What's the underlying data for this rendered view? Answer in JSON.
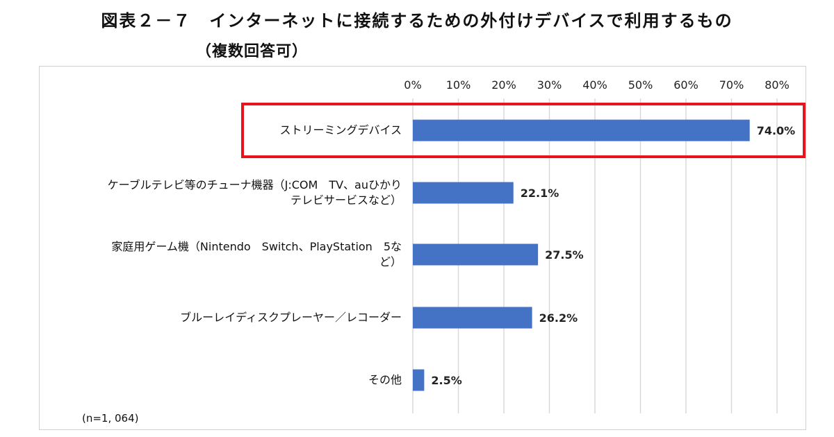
{
  "title": "図表２－７　インターネットに接続するための外付けデバイスで利用するもの",
  "subtitle": "（複数回答可）",
  "note": "(n=1, 064)",
  "chart_data": {
    "type": "bar",
    "orientation": "horizontal",
    "categories": [
      "ストリーミングデバイス",
      "ケーブルテレビ等のチューナ機器（J:COM　TV、auひかりテレビサービスなど）",
      "家庭用ゲーム機（Nintendo　Switch、PlayStation　5など）",
      "ブルーレイディスクプレーヤー／レコーダー",
      "その他"
    ],
    "category_lines": [
      [
        "ストリーミングデバイス"
      ],
      [
        "ケーブルテレビ等のチューナ機器（J:COM　TV、auひかり",
        "テレビサービスなど）"
      ],
      [
        "家庭用ゲーム機（Nintendo　Switch、PlayStation　5な",
        "ど）"
      ],
      [
        "ブルーレイディスクプレーヤー／レコーダー"
      ],
      [
        "その他"
      ]
    ],
    "values": [
      74.0,
      22.1,
      27.5,
      26.2,
      2.5
    ],
    "value_labels": [
      "74.0%",
      "22.1%",
      "27.5%",
      "26.2%",
      "2.5%"
    ],
    "xlim": [
      0,
      80
    ],
    "ticks": [
      "0%",
      "10%",
      "20%",
      "30%",
      "40%",
      "50%",
      "60%",
      "70%",
      "80%"
    ],
    "tick_values": [
      0,
      10,
      20,
      30,
      40,
      50,
      60,
      70,
      80
    ],
    "axis_position": "top",
    "grid": true,
    "legend": "none",
    "highlight_index": 0,
    "colors": {
      "bar": "#4472c4",
      "grid": "#d9d9d9",
      "highlight": "#e8141b"
    }
  }
}
